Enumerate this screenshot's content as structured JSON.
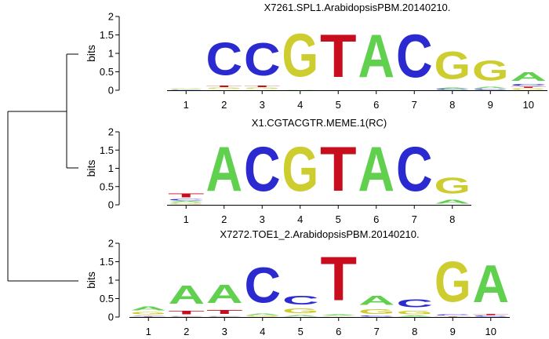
{
  "colors": {
    "A": "#61d04f",
    "C": "#2a2ad0",
    "G": "#cdcd2f",
    "T": "#c80e1e"
  },
  "chart_data": [
    {
      "type": "sequence-logo",
      "title": "X7261.SPL1.ArabidopsisPBM.20140210.",
      "ylabel": "bits",
      "ylim": [
        0,
        2
      ],
      "yticks": [
        0,
        0.5,
        1,
        1.5,
        2
      ],
      "ytick_labels": [
        "0",
        "0.5",
        "1",
        "1.5",
        "2"
      ],
      "positions": [
        {
          "label": "1",
          "letters": [
            {
              "base": "C",
              "bits": 0.02
            },
            {
              "base": "G",
              "bits": 0.02
            },
            {
              "base": "A",
              "bits": 0.03
            }
          ]
        },
        {
          "label": "2",
          "letters": [
            {
              "base": "A",
              "bits": 0.03
            },
            {
              "base": "G",
              "bits": 0.04
            },
            {
              "base": "T",
              "bits": 0.07
            },
            {
              "base": "C",
              "bits": 1.42
            }
          ]
        },
        {
          "label": "3",
          "letters": [
            {
              "base": "A",
              "bits": 0.03
            },
            {
              "base": "G",
              "bits": 0.04
            },
            {
              "base": "T",
              "bits": 0.06
            },
            {
              "base": "C",
              "bits": 1.42
            }
          ]
        },
        {
          "label": "4",
          "letters": [
            {
              "base": "A",
              "bits": 0.02
            },
            {
              "base": "G",
              "bits": 1.85
            }
          ]
        },
        {
          "label": "5",
          "letters": [
            {
              "base": "T",
              "bits": 1.86
            }
          ]
        },
        {
          "label": "6",
          "letters": [
            {
              "base": "A",
              "bits": 1.86
            }
          ]
        },
        {
          "label": "7",
          "letters": [
            {
              "base": "C",
              "bits": 1.86
            }
          ]
        },
        {
          "label": "8",
          "letters": [
            {
              "base": "C",
              "bits": 0.04
            },
            {
              "base": "A",
              "bits": 0.04
            },
            {
              "base": "G",
              "bits": 1.19
            }
          ]
        },
        {
          "label": "9",
          "letters": [
            {
              "base": "C",
              "bits": 0.04
            },
            {
              "base": "A",
              "bits": 0.06
            },
            {
              "base": "G",
              "bits": 0.86
            }
          ]
        },
        {
          "label": "10",
          "letters": [
            {
              "base": "G",
              "bits": 0.06
            },
            {
              "base": "T",
              "bits": 0.04
            },
            {
              "base": "C",
              "bits": 0.08
            },
            {
              "base": "A",
              "bits": 0.38
            }
          ]
        }
      ]
    },
    {
      "type": "sequence-logo",
      "title": "X1.CGTACGTR.MEME.1(RC)",
      "ylabel": "bits",
      "ylim": [
        0,
        2
      ],
      "yticks": [
        0,
        0.5,
        1,
        1.5,
        2
      ],
      "ytick_labels": [
        "0",
        "0.5",
        "1",
        "1.5",
        "2"
      ],
      "positions": [
        {
          "label": "1",
          "letters": [
            {
              "base": "G",
              "bits": 0.05
            },
            {
              "base": "A",
              "bits": 0.06
            },
            {
              "base": "C",
              "bits": 0.06
            },
            {
              "base": "T",
              "bits": 0.18
            }
          ]
        },
        {
          "label": "2",
          "letters": [
            {
              "base": "A",
              "bits": 1.95
            }
          ]
        },
        {
          "label": "3",
          "letters": [
            {
              "base": "C",
              "bits": 1.95
            }
          ]
        },
        {
          "label": "4",
          "letters": [
            {
              "base": "G",
              "bits": 1.95
            }
          ]
        },
        {
          "label": "5",
          "letters": [
            {
              "base": "T",
              "bits": 1.95
            }
          ]
        },
        {
          "label": "6",
          "letters": [
            {
              "base": "A",
              "bits": 1.95
            }
          ]
        },
        {
          "label": "7",
          "letters": [
            {
              "base": "C",
              "bits": 1.95
            }
          ]
        },
        {
          "label": "8",
          "letters": [
            {
              "base": "A",
              "bits": 0.18
            },
            {
              "base": "G",
              "bits": 0.68
            }
          ]
        }
      ]
    },
    {
      "type": "sequence-logo",
      "title": "X7272.TOE1_2.ArabidopsisPBM.20140210.",
      "ylabel": "bits",
      "ylim": [
        0,
        2
      ],
      "yticks": [
        0,
        0.5,
        1,
        1.5,
        2
      ],
      "ytick_labels": [
        "0",
        "0.5",
        "1",
        "1.5",
        "2"
      ],
      "positions": [
        {
          "label": "1",
          "letters": [
            {
              "base": "T",
              "bits": 0.02
            },
            {
              "base": "C",
              "bits": 0.03
            },
            {
              "base": "G",
              "bits": 0.1
            },
            {
              "base": "A",
              "bits": 0.18
            }
          ]
        },
        {
          "label": "2",
          "letters": [
            {
              "base": "C",
              "bits": 0.02
            },
            {
              "base": "G",
              "bits": 0.03
            },
            {
              "base": "T",
              "bits": 0.15
            },
            {
              "base": "A",
              "bits": 0.8
            }
          ]
        },
        {
          "label": "3",
          "letters": [
            {
              "base": "C",
              "bits": 0.02
            },
            {
              "base": "G",
              "bits": 0.03
            },
            {
              "base": "T",
              "bits": 0.18
            },
            {
              "base": "A",
              "bits": 0.8
            }
          ]
        },
        {
          "label": "4",
          "letters": [
            {
              "base": "G",
              "bits": 0.04
            },
            {
              "base": "A",
              "bits": 0.06
            },
            {
              "base": "C",
              "bits": 1.52
            }
          ]
        },
        {
          "label": "5",
          "letters": [
            {
              "base": "A",
              "bits": 0.07
            },
            {
              "base": "G",
              "bits": 0.2
            },
            {
              "base": "C",
              "bits": 0.38
            }
          ]
        },
        {
          "label": "6",
          "letters": [
            {
              "base": "G",
              "bits": 0.03
            },
            {
              "base": "A",
              "bits": 0.05
            },
            {
              "base": "T",
              "bits": 1.9
            }
          ]
        },
        {
          "label": "7",
          "letters": [
            {
              "base": "C",
              "bits": 0.05
            },
            {
              "base": "G",
              "bits": 0.2
            },
            {
              "base": "A",
              "bits": 0.4
            }
          ]
        },
        {
          "label": "8",
          "letters": [
            {
              "base": "A",
              "bits": 0.05
            },
            {
              "base": "G",
              "bits": 0.15
            },
            {
              "base": "C",
              "bits": 0.35
            }
          ]
        },
        {
          "label": "9",
          "letters": [
            {
              "base": "T",
              "bits": 0.03
            },
            {
              "base": "C",
              "bits": 0.04
            },
            {
              "base": "G",
              "bits": 1.75
            }
          ]
        },
        {
          "label": "10",
          "letters": [
            {
              "base": "C",
              "bits": 0.04
            },
            {
              "base": "T",
              "bits": 0.05
            },
            {
              "base": "A",
              "bits": 1.62
            }
          ]
        }
      ]
    }
  ]
}
